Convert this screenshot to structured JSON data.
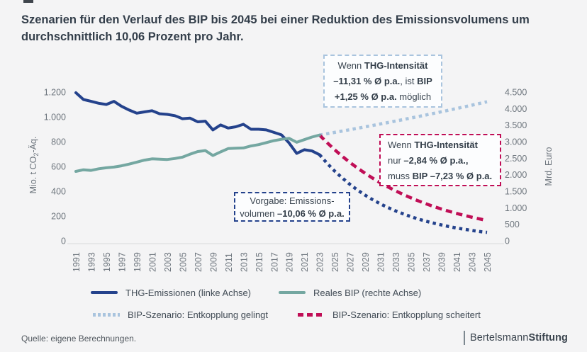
{
  "page": {
    "title": "Szenarien für den Verlauf des BIP bis 2045 bei einer Reduktion des Emissionsvolumens um durchschnittlich 10,06 Prozent pro Jahr.",
    "source": "Quelle: eigene Berechnungen.",
    "logo": {
      "part1": "Bertelsmann",
      "part2": "Stiftung"
    }
  },
  "colors": {
    "background": "#f4f4f5",
    "navy": "#24428c",
    "teal": "#74a7a1",
    "light_blue": "#a9c4de",
    "crimson": "#c00e56",
    "axis_text": "#6e767e",
    "axis_line": "#d9dada",
    "title_text": "#333e4a"
  },
  "chart_data": {
    "type": "line",
    "title": "Szenarien für den Verlauf des BIP bis 2045 bei einer Reduktion des Emissionsvolumens um durchschnittlich 10,06 Prozent pro Jahr.",
    "grid": false,
    "legend_position": "bottom",
    "x_range": [
      1991,
      2045
    ],
    "x_ticks": [
      1991,
      1993,
      1995,
      1997,
      1999,
      2001,
      2003,
      2005,
      2007,
      2009,
      2011,
      2013,
      2015,
      2017,
      2019,
      2021,
      2023,
      2025,
      2027,
      2029,
      2031,
      2033,
      2035,
      2037,
      2039,
      2041,
      2043,
      2045
    ],
    "left_axis": {
      "label": "Mio. t CO₂-Äq.",
      "label_parts": {
        "pre": "Mio. t CO",
        "sub": "2",
        "post": "-Äq."
      },
      "range": [
        0,
        1200
      ],
      "ticks": [
        {
          "value": 1200,
          "label": "1.200"
        },
        {
          "value": 1000,
          "label": "1.000"
        },
        {
          "value": 800,
          "label": "800"
        },
        {
          "value": 600,
          "label": "600"
        },
        {
          "value": 400,
          "label": "400"
        },
        {
          "value": 200,
          "label": "200"
        },
        {
          "value": 0,
          "label": "0"
        }
      ]
    },
    "right_axis": {
      "label": "Mrd. Euro",
      "range": [
        0,
        4500
      ],
      "ticks": [
        {
          "value": 4500,
          "label": "4.500"
        },
        {
          "value": 4000,
          "label": "4.000"
        },
        {
          "value": 3500,
          "label": "3.500"
        },
        {
          "value": 3000,
          "label": "3.000"
        },
        {
          "value": 2500,
          "label": "2.500"
        },
        {
          "value": 2000,
          "label": "2.000"
        },
        {
          "value": 1500,
          "label": "1.500"
        },
        {
          "value": 1000,
          "label": "1.000"
        },
        {
          "value": 500,
          "label": "500"
        },
        {
          "value": 0,
          "label": "0"
        }
      ]
    },
    "series": [
      {
        "id": "thg",
        "name": "THG-Emissionen (linke Achse)",
        "axis": "left",
        "style": "solid",
        "color": "#24428c",
        "start_year": 1991,
        "values": [
          1195,
          1140,
          1125,
          1110,
          1100,
          1125,
          1085,
          1055,
          1030,
          1040,
          1050,
          1025,
          1020,
          1010,
          985,
          990,
          960,
          965,
          895,
          935,
          910,
          920,
          940,
          900,
          900,
          895,
          875,
          855,
          790,
          705,
          735,
          725,
          695
        ]
      },
      {
        "id": "bip",
        "name": "Reales BIP (rechte Achse)",
        "axis": "right",
        "style": "solid",
        "color": "#74a7a1",
        "start_year": 1991,
        "values": [
          2100,
          2150,
          2130,
          2180,
          2210,
          2230,
          2270,
          2320,
          2380,
          2440,
          2480,
          2470,
          2460,
          2490,
          2530,
          2620,
          2700,
          2730,
          2580,
          2690,
          2790,
          2800,
          2810,
          2870,
          2910,
          2970,
          3030,
          3070,
          3100,
          2980,
          3060,
          3140,
          3200
        ]
      },
      {
        "id": "bip-gelingt",
        "name": "BIP-Szenario: Entkopplung gelingt",
        "axis": "right",
        "style": "dotted",
        "color": "#a9c4de",
        "start_year": 2023,
        "rate_pct_pa": 1.25,
        "values": [
          3200,
          3240,
          3281,
          3322,
          3363,
          3405,
          3448,
          3491,
          3535,
          3579,
          3624,
          3669,
          3715,
          3761,
          3808,
          3856,
          3904,
          3953,
          4002,
          4052,
          4103,
          4154,
          4206
        ]
      },
      {
        "id": "bip-scheitert",
        "name": "BIP-Szenario: Entkopplung scheitert",
        "axis": "right",
        "style": "dashed",
        "color": "#c00e56",
        "start_year": 2023,
        "rate_pct_pa": -7.23,
        "values": [
          3200,
          2969,
          2754,
          2555,
          2370,
          2199,
          2040,
          1893,
          1756,
          1629,
          1511,
          1402,
          1300,
          1206,
          1119,
          1038,
          963,
          894,
          829,
          769,
          714,
          662,
          614
        ]
      },
      {
        "id": "thg-szenario",
        "name": "THG-Szenario: Vorgabe Emissionsvolumen −10,06 % Ø p.a.",
        "axis": "left",
        "style": "dotted",
        "color": "#24428c",
        "start_year": 2023,
        "rate_pct_pa": -10.06,
        "values": [
          695,
          625,
          562,
          506,
          455,
          409,
          368,
          331,
          298,
          268,
          241,
          217,
          195,
          175,
          158,
          142,
          128,
          115,
          103,
          93,
          84,
          75,
          68
        ]
      }
    ],
    "legend": [
      {
        "series": 0
      },
      {
        "series": 1
      },
      {
        "series": 2
      },
      {
        "series": 3
      }
    ],
    "annotations": [
      {
        "id": "gelingt",
        "lines": [
          [
            {
              "t": "Wenn ",
              "b": false
            },
            {
              "t": "THG-Intensität",
              "b": true
            }
          ],
          [
            {
              "t": "–11,31 % Ø p.a.",
              "b": true
            },
            {
              "t": ", ist ",
              "b": false
            },
            {
              "t": "BIP",
              "b": true
            }
          ],
          [
            {
              "t": "+1,25 % Ø p.a.",
              "b": true
            },
            {
              "t": " möglich",
              "b": false
            }
          ]
        ]
      },
      {
        "id": "scheitert",
        "lines": [
          [
            {
              "t": "Wenn ",
              "b": false
            },
            {
              "t": "THG-Intensität",
              "b": true
            }
          ],
          [
            {
              "t": "nur ",
              "b": false
            },
            {
              "t": "–2,84 % Ø p.a.,",
              "b": true
            }
          ],
          [
            {
              "t": "muss ",
              "b": false
            },
            {
              "t": "BIP –7,23 % Ø p.a.",
              "b": true
            }
          ]
        ]
      },
      {
        "id": "vorgabe",
        "lines": [
          [
            {
              "t": "Vorgabe: Emissions-",
              "b": false
            }
          ],
          [
            {
              "t": "volumen ",
              "b": false
            },
            {
              "t": "–10,06 % Ø p.a.",
              "b": true
            }
          ]
        ]
      }
    ]
  }
}
